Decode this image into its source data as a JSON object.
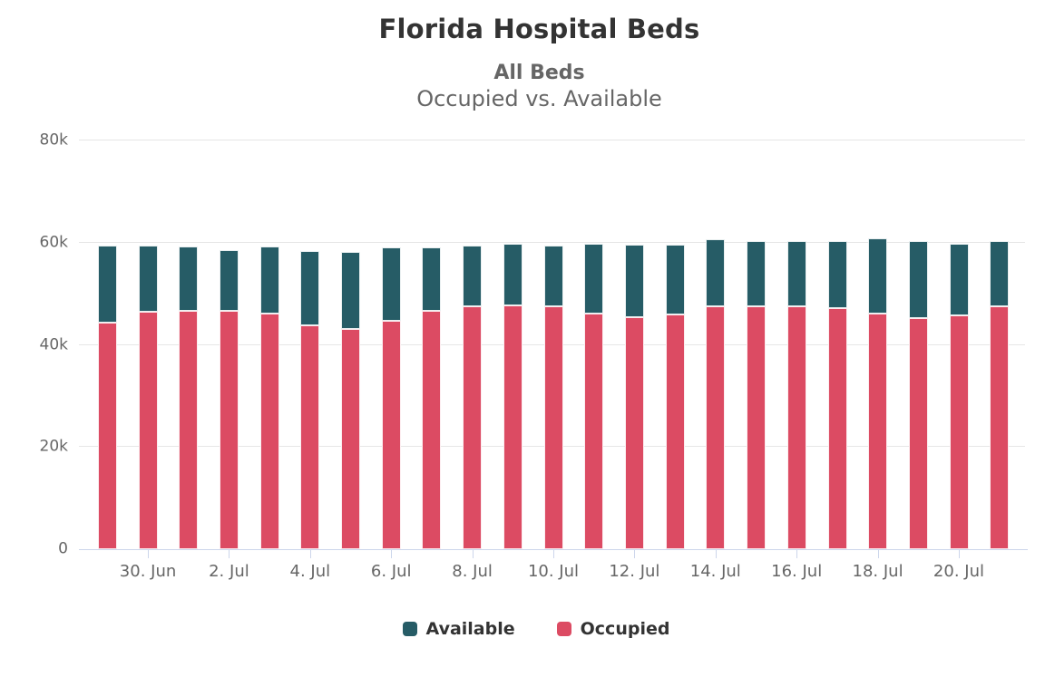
{
  "header": {
    "title": "Florida Hospital Beds",
    "subtitle": "All Beds",
    "subtitle2": "Occupied vs. Available"
  },
  "colors": {
    "available": "#265C66",
    "occupied": "#DC4B63",
    "axis_line": "#ccd6eb",
    "gridline": "#e6e6e6",
    "axis_text": "#666666",
    "title_text": "#333333",
    "background": "#ffffff"
  },
  "chart_data": {
    "type": "bar",
    "stacked": true,
    "title": "Florida Hospital Beds",
    "subtitle": "All Beds",
    "subtitle2": "Occupied vs. Available",
    "xlabel": "",
    "ylabel": "",
    "ylim": [
      0,
      80000
    ],
    "grid": "horizontal",
    "legend_position": "bottom",
    "categories": [
      "29. Jun",
      "30. Jun",
      "1. Jul",
      "2. Jul",
      "3. Jul",
      "4. Jul",
      "5. Jul",
      "6. Jul",
      "7. Jul",
      "8. Jul",
      "9. Jul",
      "10. Jul",
      "11. Jul",
      "12. Jul",
      "13. Jul",
      "14. Jul",
      "15. Jul",
      "16. Jul",
      "17. Jul",
      "18. Jul",
      "19. Jul",
      "20. Jul",
      "21. Jul"
    ],
    "series": [
      {
        "name": "Available",
        "color": "#265C66",
        "stack_position": "top",
        "values": [
          15200,
          13100,
          12600,
          11800,
          13200,
          14600,
          15000,
          14300,
          12400,
          11900,
          12000,
          11900,
          13500,
          14200,
          13600,
          13000,
          12800,
          12900,
          13200,
          14700,
          15200,
          14000,
          12900
        ]
      },
      {
        "name": "Occupied",
        "color": "#DC4B63",
        "stack_position": "bottom",
        "values": [
          44300,
          46400,
          46600,
          46700,
          46100,
          43800,
          43100,
          44700,
          46700,
          47500,
          47800,
          47500,
          46200,
          45400,
          46000,
          47600,
          47600,
          47500,
          47200,
          46100,
          45200,
          45700,
          47500
        ]
      }
    ],
    "y_ticks": [
      {
        "value": 0,
        "label": "0"
      },
      {
        "value": 20000,
        "label": "20k"
      },
      {
        "value": 40000,
        "label": "40k"
      },
      {
        "value": 60000,
        "label": "60k"
      },
      {
        "value": 80000,
        "label": "80k"
      }
    ],
    "x_ticks": [
      {
        "index": 1,
        "label": "30. Jun"
      },
      {
        "index": 3,
        "label": "2. Jul"
      },
      {
        "index": 5,
        "label": "4. Jul"
      },
      {
        "index": 7,
        "label": "6. Jul"
      },
      {
        "index": 9,
        "label": "8. Jul"
      },
      {
        "index": 11,
        "label": "10. Jul"
      },
      {
        "index": 13,
        "label": "12. Jul"
      },
      {
        "index": 15,
        "label": "14. Jul"
      },
      {
        "index": 17,
        "label": "16. Jul"
      },
      {
        "index": 19,
        "label": "18. Jul"
      },
      {
        "index": 21,
        "label": "20. Jul"
      }
    ]
  }
}
